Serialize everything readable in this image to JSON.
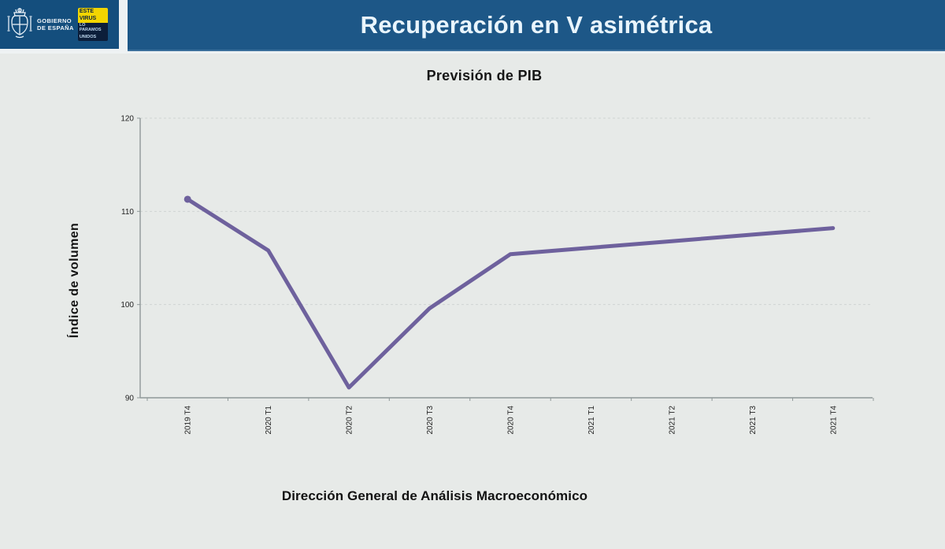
{
  "header": {
    "title": "Recuperación en V asimétrica",
    "logo": {
      "org_line1": "GOBIERNO",
      "org_line2": "DE ESPAÑA",
      "badge_top1": "ESTE",
      "badge_top2": "VIRUS",
      "badge_bottom1": "LO PARAMOS",
      "badge_bottom2": "UNIDOS"
    }
  },
  "caption": "Dirección General de Análisis Macroeconómico",
  "colors": {
    "title_bar": "#1d5787",
    "logo_block": "#144e7d",
    "badge_yellow": "#f2d500",
    "page_background": "#e7eae8",
    "line": "#6e619d",
    "gridline": "#cfd4d2",
    "axis": "#8f9898",
    "tick_text": "#222222"
  },
  "chart_data": {
    "type": "line",
    "title": "Previsión de PIB",
    "xlabel": "",
    "ylabel": "Índice de volumen",
    "categories": [
      "2019 T4",
      "2020 T1",
      "2020 T2",
      "2020 T3",
      "2020 T4",
      "2021 T1",
      "2021 T2",
      "2021 T3",
      "2021 T4"
    ],
    "series": [
      {
        "name": "Previsión de PIB",
        "values": [
          111.3,
          105.8,
          91.1,
          99.6,
          105.4,
          106.1,
          106.8,
          107.5,
          108.2
        ],
        "color": "#6e619d"
      }
    ],
    "ylim": [
      90,
      120
    ],
    "yticks": [
      90,
      100,
      110,
      120
    ],
    "grid": true,
    "legend": false,
    "x_tick_rotation": -90
  }
}
